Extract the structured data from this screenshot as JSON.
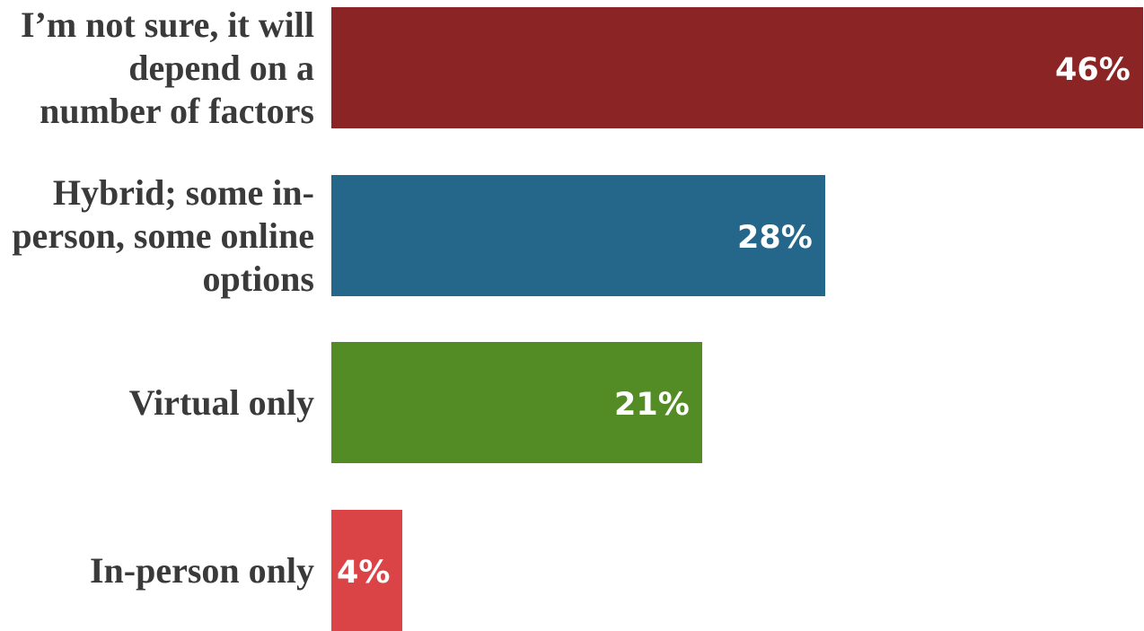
{
  "chart_data": {
    "type": "bar",
    "orientation": "horizontal",
    "categories": [
      "I’m not sure, it will depend on a number of factors",
      "Hybrid; some in-person, some online options",
      "Virtual only",
      "In-person only"
    ],
    "values": [
      46,
      28,
      21,
      4
    ],
    "value_labels": [
      "46%",
      "28%",
      "21%",
      "4%"
    ],
    "unit": "%",
    "colors": [
      "#8b2424",
      "#24678b",
      "#538b24",
      "#db4446"
    ],
    "xlim": [
      0,
      46
    ],
    "title": "",
    "xlabel": "",
    "ylabel": "",
    "grid": false,
    "legend": "none"
  }
}
